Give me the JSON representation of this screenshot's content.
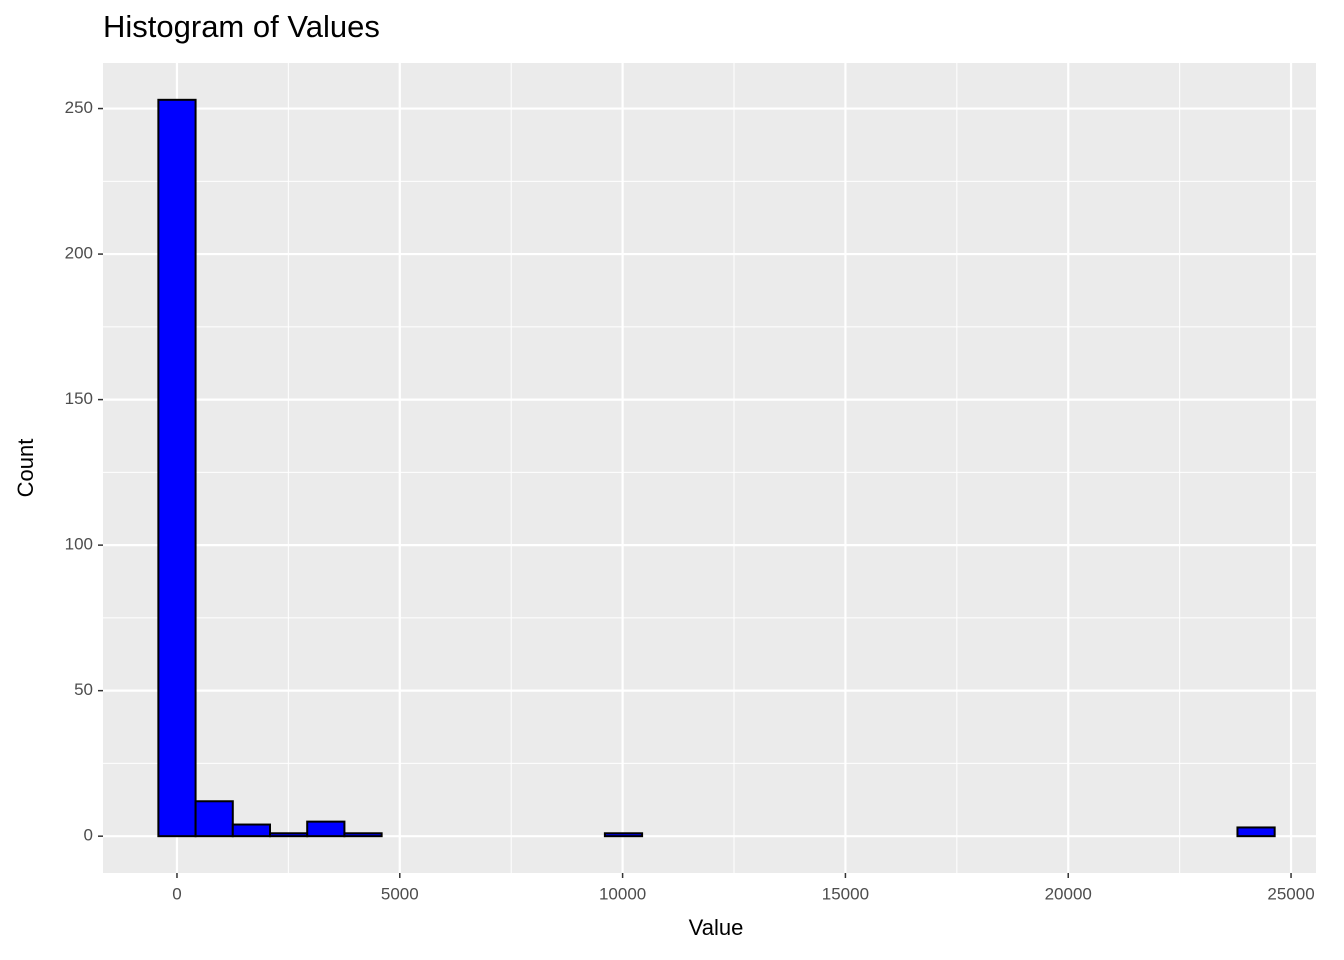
{
  "chart_data": {
    "type": "histogram",
    "title": "Histogram of Values",
    "x_label": "Value",
    "y_label": "Count",
    "bins": [
      -417.5,
      417.5,
      1252.5,
      2087.5,
      2922.5,
      3757.5,
      4592.5,
      5427.5,
      6262.5,
      7097.5,
      7932.5,
      8767.5,
      9602.5,
      10437.5,
      11272.5,
      12107.5,
      12942.5,
      13777.5,
      14612.5,
      15447.5,
      16282.5,
      17117.5,
      17952.5,
      18787.5,
      19622.5,
      20457.5,
      21292.5,
      22127.5,
      22962.5,
      23797.5,
      24632.5
    ],
    "counts": [
      253,
      12,
      4,
      1,
      5,
      1,
      0,
      0,
      0,
      0,
      0,
      0,
      1,
      0,
      0,
      0,
      0,
      0,
      0,
      0,
      0,
      0,
      0,
      0,
      0,
      0,
      0,
      0,
      0,
      3
    ],
    "color": "#0000ff",
    "edgecolor": "#000000",
    "xlim": [
      -1660,
      25560
    ],
    "xticks": [
      0,
      5000,
      10000,
      15000,
      20000,
      25000
    ],
    "xminor": [
      2500,
      7500,
      12500,
      17500,
      22500
    ],
    "ylim": [
      -12.65,
      265.65
    ],
    "yticks": [
      0,
      50,
      100,
      150,
      200,
      250
    ],
    "yminor": [
      25,
      75,
      125,
      175,
      225
    ],
    "grid": true
  }
}
